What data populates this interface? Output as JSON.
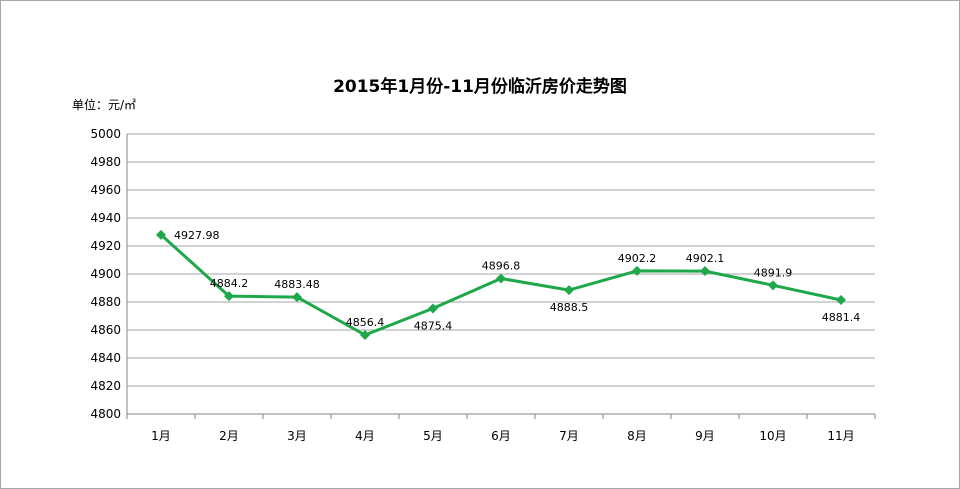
{
  "chart_data": {
    "type": "line",
    "title": "2015年1月份-11月份临沂房价走势图",
    "unit": "单位：元/㎡",
    "categories": [
      "1月",
      "2月",
      "3月",
      "4月",
      "5月",
      "6月",
      "7月",
      "8月",
      "9月",
      "10月",
      "11月"
    ],
    "values": [
      4927.98,
      4884.2,
      4883.48,
      4856.4,
      4875.4,
      4896.8,
      4888.5,
      4902.2,
      4902.1,
      4891.9,
      4881.4
    ],
    "data_labels": [
      "4927.98",
      "4884.2",
      "4883.48",
      "4856.4",
      "4875.4",
      "4896.8",
      "4888.5",
      "4902.2",
      "4902.1",
      "4891.9",
      "4881.4"
    ],
    "ylim": [
      4800,
      5000
    ],
    "yticks": [
      "4800",
      "4820",
      "4840",
      "4860",
      "4880",
      "4900",
      "4920",
      "4940",
      "4960",
      "4980",
      "5000"
    ],
    "grid": true,
    "legend": "none",
    "color": "#1ea84a"
  }
}
